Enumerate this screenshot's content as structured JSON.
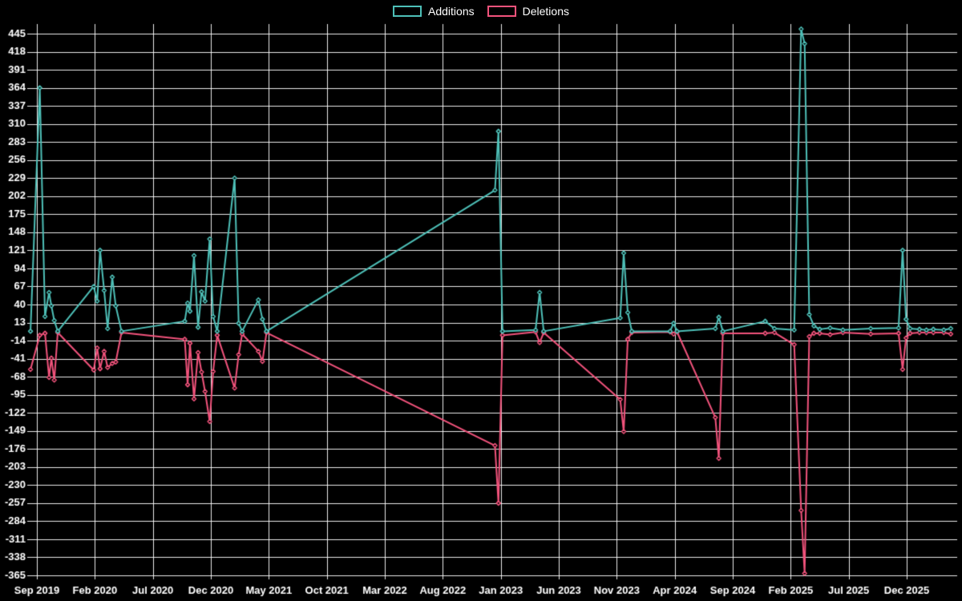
{
  "legend": {
    "additions_label": "Additions",
    "deletions_label": "Deletions"
  },
  "colors": {
    "additions": "#4EC0B8",
    "deletions": "#F2537C",
    "grid": "#FFFFFF",
    "background": "#000000",
    "text": "#FFFFFF"
  },
  "chart_data": {
    "type": "line",
    "title": "",
    "xlabel": "",
    "ylabel": "",
    "legend_position": "top",
    "grid": true,
    "x_axis": {
      "unit": "months since Sep 2019",
      "tick_positions": [
        0,
        5,
        10,
        15,
        20,
        25,
        30,
        35,
        40,
        45,
        50,
        55,
        60,
        65,
        70,
        75
      ],
      "tick_labels": [
        "Sep 2019",
        "Feb 2020",
        "Jul 2020",
        "Dec 2020",
        "May 2021",
        "Oct 2021",
        "Mar 2022",
        "Aug 2022",
        "Jan 2023",
        "Jun 2023",
        "Nov 2023",
        "Apr 2024",
        "Sep 2024",
        "Feb 2025",
        "Jul 2025",
        "Dec 2025"
      ],
      "min": -0.6,
      "max": 79.3
    },
    "y_axis": {
      "min": -365,
      "max": 445,
      "tick_step": 27,
      "tick_values": [
        445,
        418,
        391,
        364,
        337,
        310,
        283,
        256,
        229,
        202,
        175,
        148,
        121,
        94,
        67,
        40,
        13,
        -14,
        -41,
        -68,
        -95,
        -122,
        -149,
        -176,
        -203,
        -230,
        -257,
        -284,
        -311,
        -338,
        -365
      ],
      "tick_labels": [
        "445",
        "418",
        "391",
        "364",
        "337",
        "310",
        "283",
        "256",
        "229",
        "202",
        "175",
        "148",
        "121",
        "94",
        "67",
        "40",
        "13",
        "-14",
        "-41",
        "-68",
        "-95",
        "-122",
        "-149",
        "-176",
        "-203",
        "-230",
        "-257",
        "-284",
        "-311",
        "-338",
        "-365"
      ]
    },
    "x": [
      -0.55,
      0.25,
      0.7,
      1.05,
      1.25,
      1.5,
      1.8,
      4.9,
      5.2,
      5.45,
      5.8,
      6.1,
      6.5,
      6.8,
      7.3,
      12.75,
      13.0,
      13.2,
      13.55,
      13.9,
      14.2,
      14.5,
      14.9,
      15.2,
      15.55,
      17.05,
      17.4,
      17.7,
      19.1,
      19.45,
      19.8,
      39.5,
      39.8,
      40.15,
      43.0,
      43.35,
      43.7,
      50.3,
      50.6,
      50.95,
      51.3,
      54.6,
      54.9,
      55.2,
      58.5,
      58.8,
      59.15,
      62.8,
      63.6,
      65.3,
      65.9,
      66.2,
      66.6,
      67.0,
      67.5,
      68.4,
      69.5,
      71.9,
      74.3,
      74.65,
      74.95,
      75.3,
      76.1,
      76.7,
      77.3,
      78.2,
      78.8
    ],
    "series": [
      {
        "name": "Additions",
        "color": "#4EC0B8",
        "values": [
          0,
          364,
          22,
          58,
          38,
          16,
          0,
          67,
          45,
          121,
          61,
          4,
          81,
          38,
          0,
          15,
          42,
          30,
          113,
          6,
          59,
          45,
          138,
          22,
          0,
          229,
          12,
          0,
          47,
          18,
          0,
          211,
          299,
          0,
          2,
          58,
          0,
          20,
          117,
          28,
          0,
          0,
          12,
          0,
          4,
          21,
          0,
          15,
          4,
          2,
          452,
          430,
          25,
          8,
          3,
          5,
          2,
          4,
          5,
          121,
          18,
          4,
          3,
          2,
          3,
          2,
          4
        ]
      },
      {
        "name": "Deletions",
        "color": "#F2537C",
        "values": [
          -57,
          -6,
          -3,
          -69,
          -40,
          -73,
          -2,
          -58,
          -25,
          -56,
          -30,
          -54,
          -48,
          -46,
          -2,
          -12,
          -80,
          -18,
          -101,
          -32,
          -61,
          -90,
          -135,
          -60,
          -6,
          -85,
          -35,
          -4,
          -30,
          -45,
          -2,
          -171,
          -257,
          -6,
          -1,
          -17,
          -2,
          -102,
          -150,
          -12,
          -2,
          -1,
          -4,
          -1,
          -129,
          -190,
          -3,
          -3,
          -2,
          -20,
          -268,
          -362,
          -8,
          -3,
          -3,
          -5,
          -2,
          -4,
          -3,
          -57,
          -10,
          -3,
          -2,
          -2,
          -2,
          -2,
          -4
        ]
      }
    ]
  }
}
